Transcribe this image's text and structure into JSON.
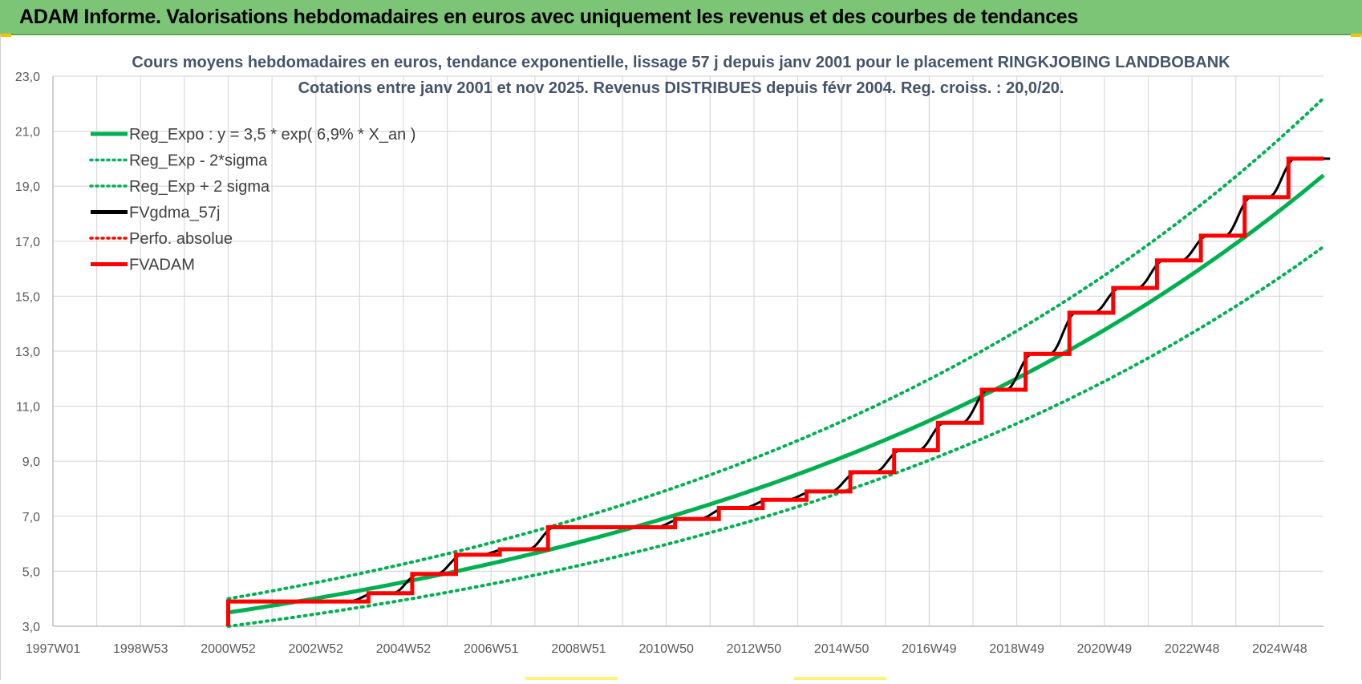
{
  "header": {
    "title": "ADAM Informe. Valorisations hebdomadaires en euros avec uniquement les revenus et des courbes de tendances"
  },
  "colors": {
    "header_bg": "#7cc576",
    "green": "#00b050",
    "black": "#000000",
    "red": "#ff0000",
    "grid": "#d9d9d9"
  },
  "chart_data": {
    "type": "line",
    "title_line1": "Cours moyens hebdomadaires en euros, tendance exponentielle, lissage 57 j depuis janv 2001 pour le placement RINGKJOBING LANDBOBANK",
    "title_line2": "Cotations entre janv 2001 et nov 2025. Revenus DISTRIBUES depuis févr 2004. Reg. croiss. : 20,0/20.",
    "x_ticks": [
      "1997W01",
      "1998W53",
      "2000W52",
      "2002W52",
      "2004W52",
      "2006W51",
      "2008W51",
      "2010W50",
      "2012W50",
      "2014W50",
      "2016W49",
      "2018W49",
      "2020W49",
      "2022W48",
      "2024W48"
    ],
    "x_range": [
      1997.0,
      2026.0
    ],
    "y_ticks": [
      "3,0",
      "5,0",
      "7,0",
      "9,0",
      "11,0",
      "13,0",
      "15,0",
      "17,0",
      "19,0",
      "21,0",
      "23,0"
    ],
    "ylim": [
      3.0,
      23.0
    ],
    "grid": true,
    "legend_position": "top-left",
    "legend": [
      {
        "name": "Reg_Expo : y = 3,5 * exp( 6,9% *  X_an )",
        "color": "#00b050",
        "style": "solid"
      },
      {
        "name": "Reg_Exp - 2*sigma",
        "color": "#00b050",
        "style": "dotted"
      },
      {
        "name": "Reg_Exp + 2 sigma",
        "color": "#00b050",
        "style": "dotted"
      },
      {
        "name": "FVgdma_57j",
        "color": "#000000",
        "style": "solid"
      },
      {
        "name": "Perfo. absolue",
        "color": "#ff0000",
        "style": "dotted"
      },
      {
        "name": "FVADAM",
        "color": "#ff0000",
        "style": "solid"
      }
    ],
    "series": [
      {
        "name": "Reg_Expo : y = 3,5 * exp( 6,9% *  X_an )",
        "x": [
          2001.0,
          2003.0,
          2005.0,
          2007.0,
          2009.0,
          2011.0,
          2013.0,
          2015.0,
          2017.0,
          2019.0,
          2021.0,
          2023.0,
          2025.0,
          2026.0
        ],
        "values": [
          3.5,
          4.0,
          4.6,
          5.3,
          6.1,
          7.0,
          8.0,
          9.2,
          10.5,
          12.1,
          13.9,
          15.9,
          18.2,
          19.4
        ]
      },
      {
        "name": "Reg_Exp - 2*sigma",
        "x": [
          2001.0,
          2003.0,
          2005.0,
          2007.0,
          2009.0,
          2011.0,
          2013.0,
          2015.0,
          2017.0,
          2019.0,
          2021.0,
          2023.0,
          2025.0,
          2026.0
        ],
        "values": [
          3.0,
          3.5,
          4.0,
          4.6,
          5.3,
          6.1,
          7.0,
          8.0,
          9.1,
          10.5,
          12.0,
          13.8,
          15.8,
          16.8
        ]
      },
      {
        "name": "Reg_Exp + 2 sigma",
        "x": [
          2001.0,
          2003.0,
          2005.0,
          2007.0,
          2009.0,
          2011.0,
          2013.0,
          2015.0,
          2017.0,
          2019.0,
          2021.0,
          2023.0,
          2025.0,
          2026.0
        ],
        "values": [
          4.0,
          4.6,
          5.3,
          6.1,
          7.0,
          8.0,
          9.2,
          10.6,
          12.1,
          13.9,
          15.9,
          18.2,
          20.9,
          22.2
        ]
      },
      {
        "name": "FVADAM",
        "x": [
          2001.0,
          2001.0,
          2004.2,
          2004.2,
          2005.2,
          2005.2,
          2006.2,
          2006.2,
          2007.2,
          2007.2,
          2008.3,
          2008.3,
          2011.2,
          2011.2,
          2012.2,
          2012.2,
          2013.2,
          2013.2,
          2014.2,
          2014.2,
          2015.2,
          2015.2,
          2016.2,
          2016.2,
          2017.2,
          2017.2,
          2018.2,
          2018.2,
          2019.2,
          2019.2,
          2020.2,
          2020.2,
          2021.2,
          2021.2,
          2022.2,
          2022.2,
          2023.2,
          2023.2,
          2024.2,
          2024.2,
          2025.2,
          2025.2,
          2026.0
        ],
        "values": [
          3.0,
          3.9,
          3.9,
          4.2,
          4.2,
          4.9,
          4.9,
          5.6,
          5.6,
          5.8,
          5.8,
          6.6,
          6.6,
          6.9,
          6.9,
          7.3,
          7.3,
          7.6,
          7.6,
          7.9,
          7.9,
          8.6,
          8.6,
          9.4,
          9.4,
          10.4,
          10.4,
          11.6,
          11.6,
          12.9,
          12.9,
          14.4,
          14.4,
          15.3,
          15.3,
          16.3,
          16.3,
          17.2,
          17.2,
          18.6,
          18.6,
          20.0,
          20.0
        ]
      },
      {
        "name": "FVgdma_57j",
        "note_values_follow_FVADAM_with_smoothed_steps": true
      }
    ]
  }
}
